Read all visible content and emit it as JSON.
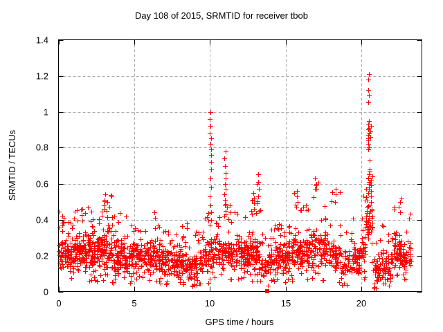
{
  "figure": {
    "background": "#ffffff"
  },
  "chart_data": {
    "type": "scatter",
    "title": "Day 108 of 2015, SRMTID for receiver tbob",
    "xlabel": "GPS time / hours",
    "ylabel": "SRMTID / TECUs",
    "xlim": [
      0,
      24
    ],
    "ylim": [
      0,
      1.4
    ],
    "xticks": [
      0,
      5,
      10,
      15,
      20
    ],
    "xtick_labels": [
      "0",
      "5",
      "10",
      "15",
      "20"
    ],
    "yticks": [
      0,
      0.2,
      0.4,
      0.6,
      0.8,
      1.0,
      1.2,
      1.4
    ],
    "ytick_labels": [
      "0",
      "0.2",
      "0.4",
      "0.6",
      "0.8",
      "1",
      "1.2",
      "1.4"
    ],
    "grid": {
      "show": true,
      "style": "dashed",
      "color": "#a8a8a8"
    },
    "axis_color": "#000000",
    "text_color": "#000000",
    "legend": "none",
    "series": [
      {
        "name": "SRMTID",
        "marker": "plus",
        "color": "#ff0000",
        "marker_size": 7
      }
    ],
    "point_cloud": {
      "seed": 42,
      "comment_encoding": "bands of the dense scatter: [hour_start, hour_end, n_points, y_low, y_high, y_peak]",
      "bands": [
        [
          0.0,
          0.5,
          55,
          0.1,
          0.32,
          0.46
        ],
        [
          0.5,
          1.0,
          55,
          0.08,
          0.3,
          0.42
        ],
        [
          1.0,
          1.5,
          60,
          0.1,
          0.34,
          0.46
        ],
        [
          1.5,
          2.0,
          60,
          0.1,
          0.35,
          0.48
        ],
        [
          2.0,
          2.5,
          60,
          0.1,
          0.33,
          0.45
        ],
        [
          2.5,
          3.0,
          60,
          0.1,
          0.36,
          0.48
        ],
        [
          3.0,
          3.5,
          58,
          0.1,
          0.38,
          0.54
        ],
        [
          3.5,
          4.0,
          52,
          0.08,
          0.3,
          0.42
        ],
        [
          4.0,
          4.5,
          52,
          0.08,
          0.32,
          0.46
        ],
        [
          4.5,
          5.0,
          48,
          0.08,
          0.3,
          0.4
        ],
        [
          5.0,
          5.5,
          48,
          0.11,
          0.28,
          0.36
        ],
        [
          5.5,
          6.0,
          48,
          0.1,
          0.28,
          0.38
        ],
        [
          6.0,
          6.5,
          50,
          0.08,
          0.3,
          0.44
        ],
        [
          6.5,
          7.0,
          48,
          0.08,
          0.28,
          0.38
        ],
        [
          7.0,
          7.5,
          46,
          0.06,
          0.26,
          0.34
        ],
        [
          7.5,
          8.0,
          46,
          0.05,
          0.24,
          0.32
        ],
        [
          8.0,
          8.5,
          48,
          0.06,
          0.26,
          0.38
        ],
        [
          8.5,
          9.0,
          44,
          0.05,
          0.22,
          0.3
        ],
        [
          9.0,
          9.5,
          44,
          0.05,
          0.24,
          0.34
        ],
        [
          9.5,
          9.95,
          36,
          0.08,
          0.32,
          0.44
        ],
        [
          9.95,
          10.2,
          22,
          0.1,
          0.35,
          0.48
        ],
        [
          10.2,
          10.85,
          46,
          0.1,
          0.33,
          0.46
        ],
        [
          10.85,
          11.15,
          26,
          0.1,
          0.34,
          0.5
        ],
        [
          11.15,
          12.0,
          70,
          0.1,
          0.34,
          0.48
        ],
        [
          12.0,
          12.5,
          54,
          0.1,
          0.32,
          0.47
        ],
        [
          12.5,
          13.0,
          54,
          0.08,
          0.34,
          0.53
        ],
        [
          13.0,
          13.4,
          38,
          0.06,
          0.32,
          0.6
        ],
        [
          13.4,
          14.0,
          44,
          0.05,
          0.24,
          0.34
        ],
        [
          14.0,
          14.5,
          48,
          0.09,
          0.29,
          0.39
        ],
        [
          14.5,
          15.0,
          48,
          0.09,
          0.29,
          0.38
        ],
        [
          15.0,
          15.5,
          48,
          0.1,
          0.31,
          0.44
        ],
        [
          15.5,
          16.0,
          50,
          0.1,
          0.34,
          0.55
        ],
        [
          16.0,
          16.5,
          50,
          0.12,
          0.36,
          0.5
        ],
        [
          16.5,
          17.2,
          56,
          0.12,
          0.38,
          0.62
        ],
        [
          17.2,
          18.0,
          58,
          0.1,
          0.34,
          0.48
        ],
        [
          18.0,
          18.6,
          52,
          0.08,
          0.31,
          0.56
        ],
        [
          18.6,
          19.4,
          52,
          0.05,
          0.24,
          0.34
        ],
        [
          19.4,
          20.0,
          48,
          0.08,
          0.3,
          0.45
        ],
        [
          20.0,
          20.3,
          26,
          0.12,
          0.38,
          0.55
        ],
        [
          20.3,
          20.75,
          48,
          0.25,
          0.55,
          0.68
        ],
        [
          20.75,
          21.3,
          46,
          0.03,
          0.2,
          0.3
        ],
        [
          21.3,
          22.0,
          52,
          0.05,
          0.25,
          0.4
        ],
        [
          22.0,
          22.7,
          75,
          0.1,
          0.34,
          0.52
        ],
        [
          22.7,
          23.3,
          50,
          0.08,
          0.28,
          0.44
        ]
      ],
      "spike_columns": [
        {
          "x": 3.05,
          "ys": [
            0.54,
            0.51,
            0.48,
            0.46
          ]
        },
        {
          "x": 6.35,
          "ys": [
            0.44,
            0.41
          ]
        },
        {
          "x": 10.05,
          "ys": [
            1.0,
            0.96,
            0.92,
            0.88,
            0.85,
            0.82,
            0.79,
            0.76,
            0.72,
            0.68,
            0.63,
            0.58,
            0.53,
            0.48,
            0.44,
            0.4
          ]
        },
        {
          "x": 11.0,
          "ys": [
            0.78,
            0.74,
            0.7,
            0.66,
            0.63,
            0.6,
            0.57,
            0.54,
            0.51,
            0.48,
            0.45,
            0.42
          ]
        },
        {
          "x": 12.9,
          "ys": [
            0.55,
            0.52,
            0.49,
            0.46
          ]
        },
        {
          "x": 13.2,
          "ys": [
            0.65,
            0.61,
            0.57,
            0.53,
            0.49,
            0.45
          ]
        },
        {
          "x": 15.75,
          "ys": [
            0.56,
            0.53,
            0.5,
            0.47
          ]
        },
        {
          "x": 17.0,
          "ys": [
            0.63,
            0.6,
            0.57
          ]
        },
        {
          "x": 18.3,
          "ys": [
            0.57,
            0.54,
            0.5
          ]
        },
        {
          "x": 20.5,
          "ys": [
            1.21,
            1.18,
            1.12,
            1.09,
            1.05,
            0.95,
            0.93,
            0.91,
            0.9,
            0.88,
            0.87,
            0.85,
            0.84,
            0.82,
            0.8,
            0.79,
            0.73,
            0.68,
            0.65,
            0.63,
            0.61,
            0.6,
            0.58,
            0.57,
            0.55
          ]
        },
        {
          "x": 20.62,
          "ys": [
            0.92,
            0.89,
            0.86,
            0.62,
            0.59,
            0.56,
            0.53,
            0.5
          ]
        },
        {
          "x": 22.5,
          "ys": [
            0.5,
            0.47,
            0.44
          ]
        }
      ],
      "special_points": [
        {
          "x": 13.8,
          "y": 0,
          "marker": "filled-square",
          "color": "#ff0000",
          "size": 6
        }
      ]
    }
  }
}
